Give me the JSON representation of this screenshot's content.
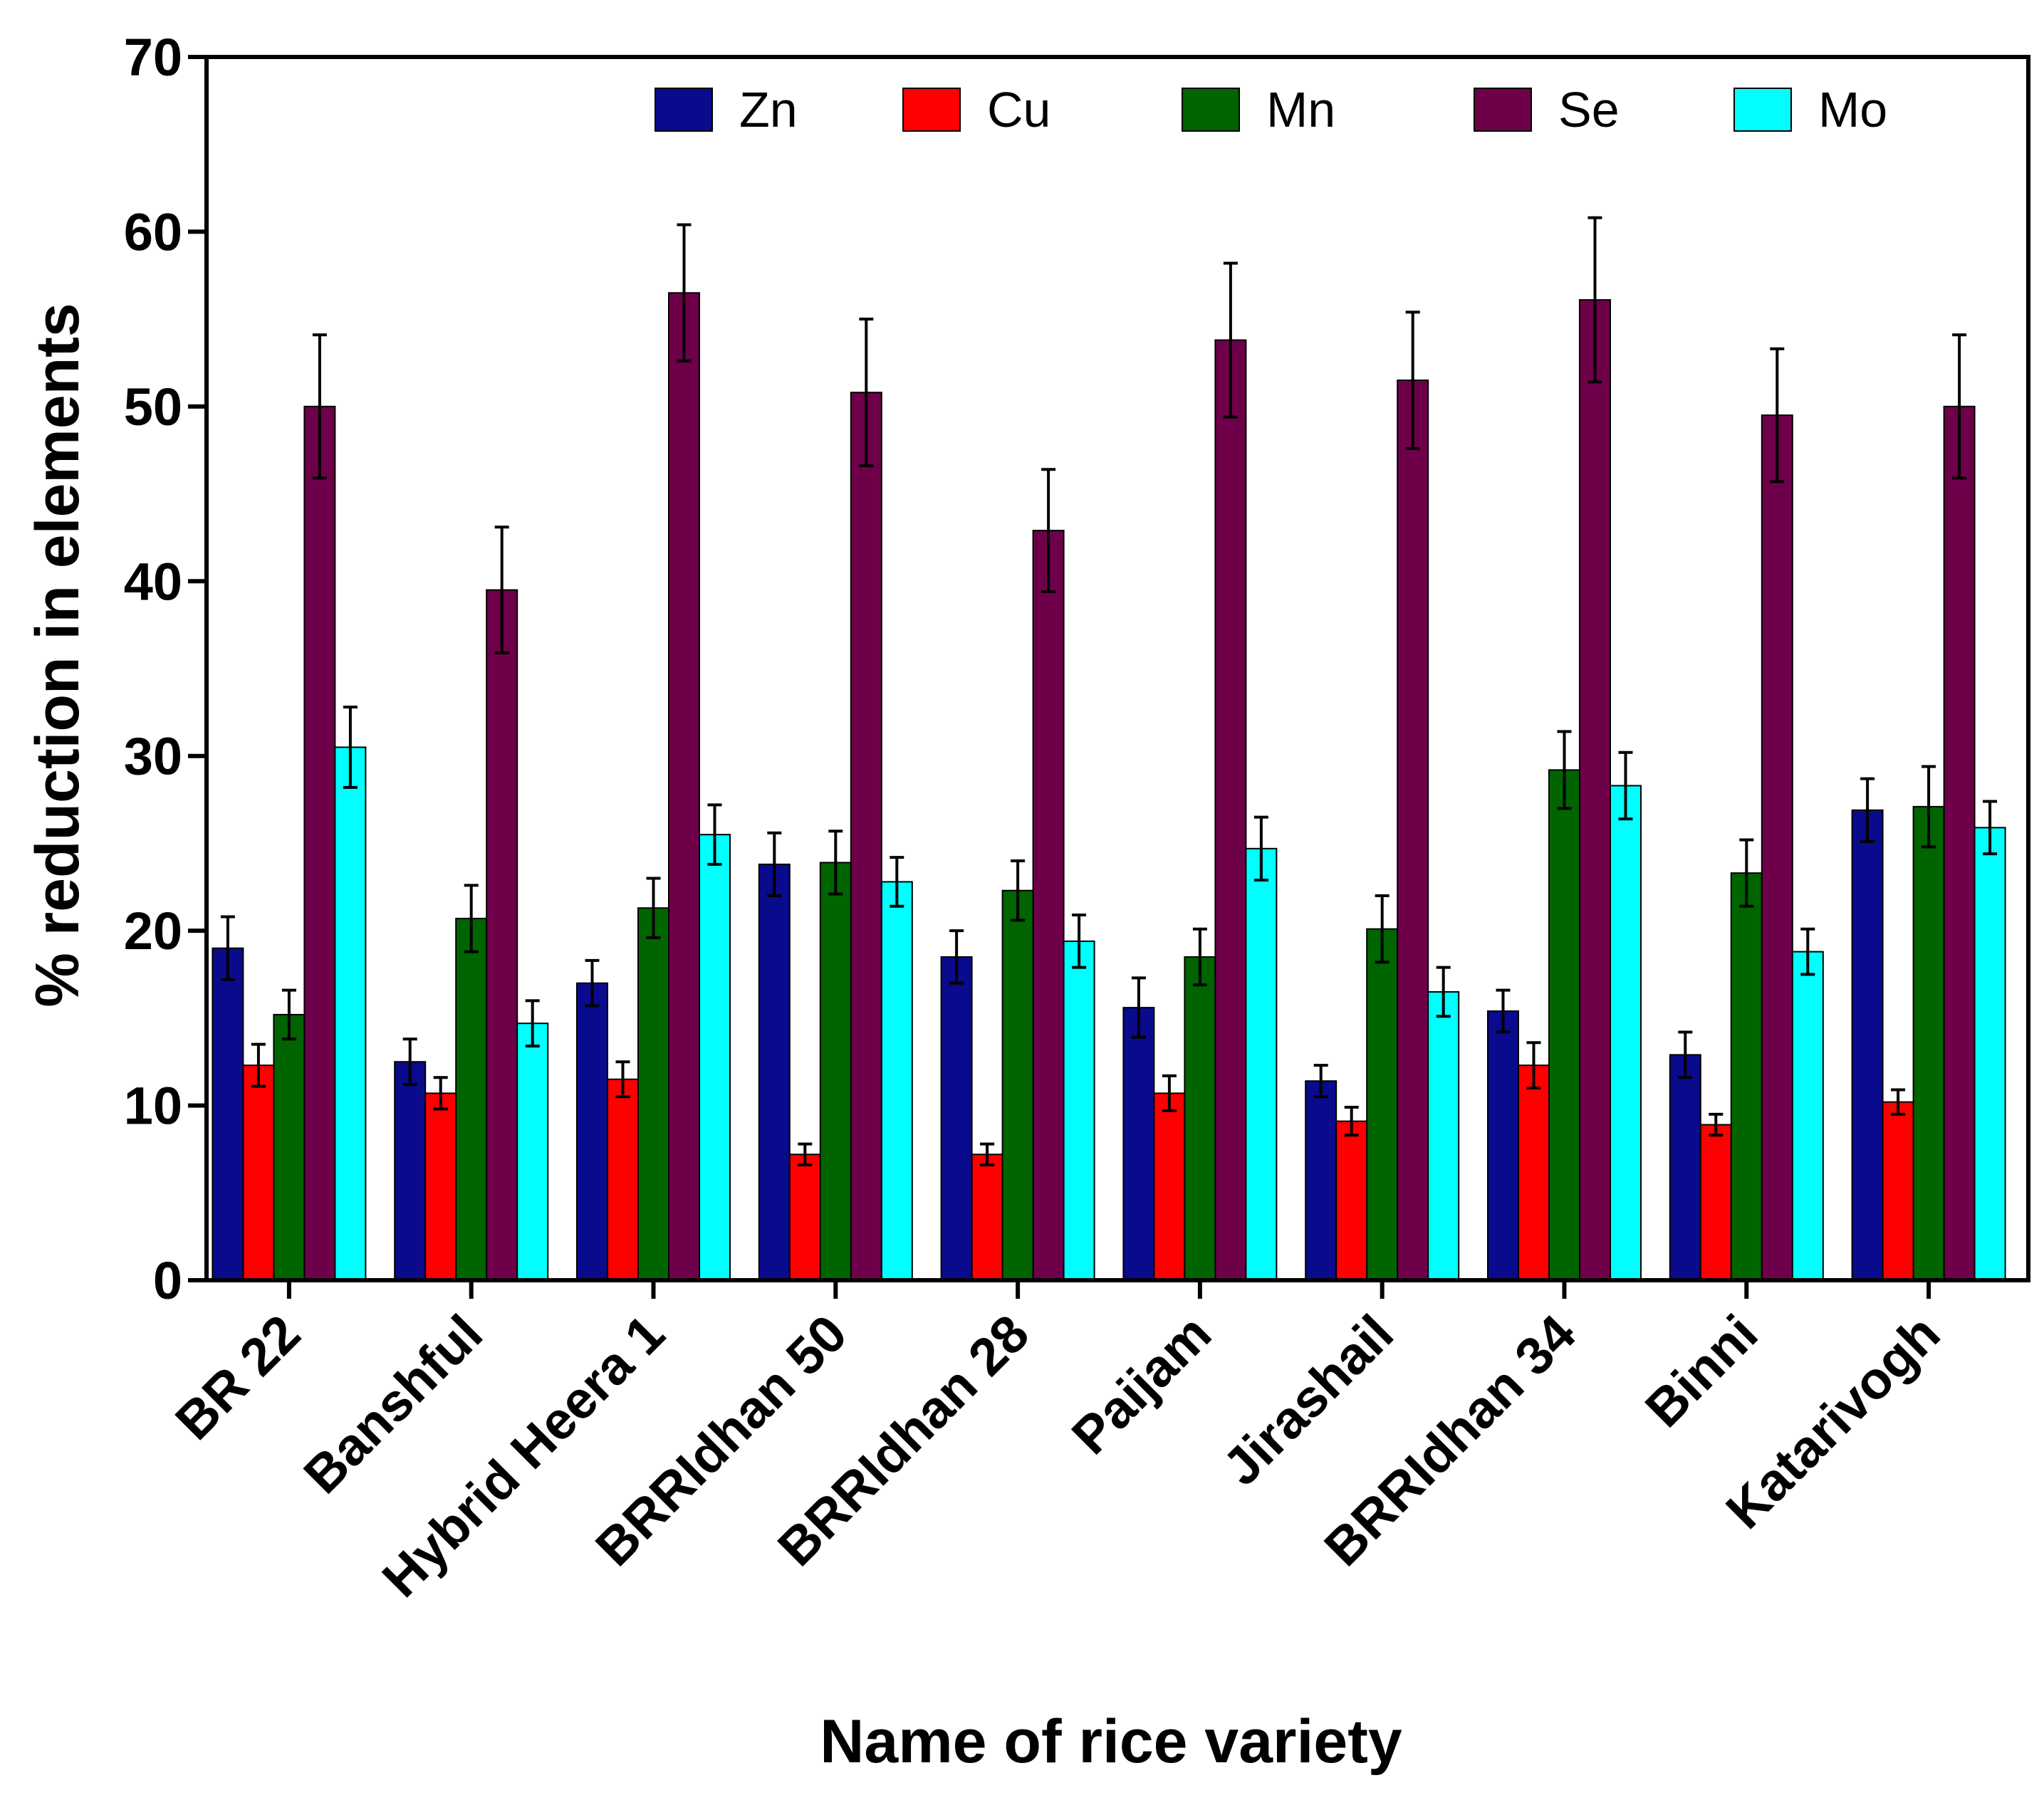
{
  "chart_data": {
    "type": "bar",
    "title": "",
    "xlabel": "Name of rice variety",
    "ylabel": "% reduction in elements",
    "ylim": [
      0,
      70
    ],
    "yticks": [
      0,
      10,
      20,
      30,
      40,
      50,
      60,
      70
    ],
    "grid": false,
    "legend_position": "top",
    "categories": [
      "BR 22",
      "Banshful",
      "Hybrid Heera 1",
      "BRRIdhan 50",
      "BRRIdhan 28",
      "Paijam",
      "Jirashail",
      "BRRIdhan 34",
      "Binni",
      "Katarivogh"
    ],
    "series": [
      {
        "name": "Zn",
        "color": "#0a0a8c",
        "values": [
          19.0,
          12.5,
          17.0,
          23.8,
          18.5,
          15.6,
          11.4,
          15.4,
          12.9,
          26.9
        ],
        "errors": [
          1.8,
          1.3,
          1.3,
          1.8,
          1.5,
          1.7,
          0.9,
          1.2,
          1.3,
          1.8
        ]
      },
      {
        "name": "Cu",
        "color": "#ff0000",
        "values": [
          12.3,
          10.7,
          11.5,
          7.2,
          7.2,
          10.7,
          9.1,
          12.3,
          8.9,
          10.2
        ],
        "errors": [
          1.2,
          0.9,
          1.0,
          0.6,
          0.6,
          1.0,
          0.8,
          1.3,
          0.6,
          0.7
        ]
      },
      {
        "name": "Mn",
        "color": "#006400",
        "values": [
          15.2,
          20.7,
          21.3,
          23.9,
          22.3,
          18.5,
          20.1,
          29.2,
          23.3,
          27.1
        ],
        "errors": [
          1.4,
          1.9,
          1.7,
          1.8,
          1.7,
          1.6,
          1.9,
          2.2,
          1.9,
          2.3
        ]
      },
      {
        "name": "Se",
        "color": "#6e004a",
        "values": [
          50.0,
          39.5,
          56.5,
          50.8,
          42.9,
          53.8,
          51.5,
          56.1,
          49.5,
          50.0
        ],
        "errors": [
          4.1,
          3.6,
          3.9,
          4.2,
          3.5,
          4.4,
          3.9,
          4.7,
          3.8,
          4.1
        ]
      },
      {
        "name": "Mo",
        "color": "#00ffff",
        "values": [
          30.5,
          14.7,
          25.5,
          22.8,
          19.4,
          24.7,
          16.5,
          28.3,
          18.8,
          25.9
        ],
        "errors": [
          2.3,
          1.3,
          1.7,
          1.4,
          1.5,
          1.8,
          1.4,
          1.9,
          1.3,
          1.5
        ]
      }
    ]
  }
}
